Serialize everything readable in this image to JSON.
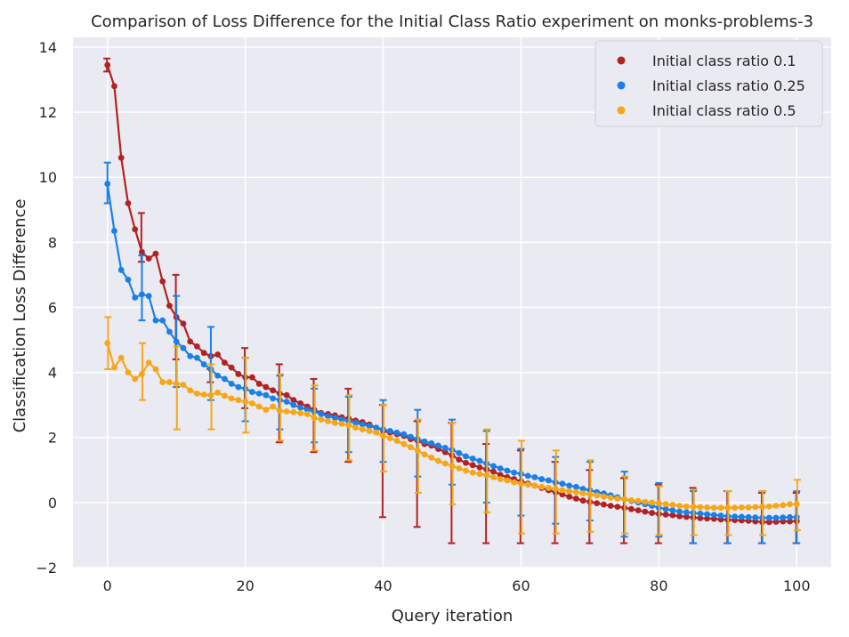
{
  "chart_data": {
    "type": "line",
    "title": "Comparison of Loss Difference for the Initial Class Ratio experiment on monks-problems-3",
    "xlabel": "Query iteration",
    "ylabel": "Classification Loss Difference",
    "xlim": [
      -5,
      105
    ],
    "ylim": [
      -2,
      14.3
    ],
    "xticks": [
      0,
      20,
      40,
      60,
      80,
      100
    ],
    "xtick_labels": [
      "0",
      "20",
      "40",
      "60",
      "80",
      "100"
    ],
    "yticks": [
      -2,
      0,
      2,
      4,
      6,
      8,
      10,
      12,
      14
    ],
    "ytick_labels": [
      "−2",
      "0",
      "2",
      "4",
      "6",
      "8",
      "10",
      "12",
      "14"
    ],
    "grid": true,
    "background": "#eaeaf2",
    "legend_position": "top-right",
    "errorbar_every": 5,
    "series": [
      {
        "name": "Initial class ratio 0.1",
        "color": "#b22222",
        "values": [
          13.45,
          12.8,
          10.6,
          9.2,
          8.4,
          7.7,
          7.5,
          7.65,
          6.8,
          6.05,
          5.7,
          5.5,
          4.95,
          4.8,
          4.6,
          4.5,
          4.55,
          4.3,
          4.15,
          3.95,
          3.85,
          3.85,
          3.65,
          3.55,
          3.45,
          3.35,
          3.3,
          3.15,
          3.05,
          2.95,
          2.85,
          2.75,
          2.72,
          2.68,
          2.62,
          2.58,
          2.52,
          2.47,
          2.4,
          2.3,
          2.2,
          2.15,
          2.1,
          2.05,
          1.95,
          1.9,
          1.8,
          1.75,
          1.65,
          1.55,
          1.45,
          1.32,
          1.22,
          1.15,
          1.08,
          1.02,
          0.95,
          0.85,
          0.78,
          0.72,
          0.65,
          0.58,
          0.52,
          0.45,
          0.38,
          0.32,
          0.25,
          0.18,
          0.12,
          0.06,
          0.02,
          -0.02,
          -0.06,
          -0.1,
          -0.13,
          -0.16,
          -0.2,
          -0.24,
          -0.28,
          -0.32,
          -0.35,
          -0.37,
          -0.39,
          -0.42,
          -0.44,
          -0.46,
          -0.48,
          -0.49,
          -0.5,
          -0.52,
          -0.53,
          -0.54,
          -0.55,
          -0.56,
          -0.58,
          -0.6,
          -0.6,
          -0.59,
          -0.58,
          -0.58,
          -0.57
        ],
        "err_low": [
          13.25,
          7.4,
          4.4,
          3.7,
          2.9,
          1.85,
          1.55,
          1.25,
          -0.45,
          -0.75,
          -1.25,
          -1.25,
          -1.25,
          -1.25,
          -1.25,
          -1.25,
          -1.25,
          -1.25,
          -1.25,
          -1.25,
          -1.25
        ],
        "err_high": [
          13.65,
          8.9,
          7.0,
          4.1,
          4.75,
          4.25,
          3.8,
          3.5,
          3.0,
          2.5,
          2.45,
          1.8,
          1.6,
          1.25,
          1.0,
          0.75,
          0.55,
          0.45,
          0.35,
          0.3,
          0.3
        ]
      },
      {
        "name": "Initial class ratio 0.25",
        "color": "#1a80e8",
        "values": [
          9.8,
          8.35,
          7.15,
          6.85,
          6.3,
          6.4,
          6.35,
          5.6,
          5.6,
          5.25,
          4.95,
          4.75,
          4.5,
          4.45,
          4.25,
          4.1,
          3.9,
          3.8,
          3.65,
          3.55,
          3.5,
          3.4,
          3.35,
          3.3,
          3.2,
          3.15,
          3.1,
          3.0,
          2.92,
          2.85,
          2.8,
          2.72,
          2.65,
          2.6,
          2.55,
          2.5,
          2.45,
          2.4,
          2.35,
          2.3,
          2.25,
          2.2,
          2.15,
          2.1,
          2.02,
          1.95,
          1.88,
          1.82,
          1.75,
          1.68,
          1.62,
          1.52,
          1.42,
          1.35,
          1.28,
          1.2,
          1.12,
          1.05,
          0.98,
          0.92,
          0.88,
          0.82,
          0.78,
          0.72,
          0.68,
          0.62,
          0.58,
          0.52,
          0.48,
          0.42,
          0.38,
          0.32,
          0.28,
          0.22,
          0.16,
          0.1,
          0.05,
          0.0,
          -0.05,
          -0.1,
          -0.16,
          -0.2,
          -0.24,
          -0.28,
          -0.3,
          -0.32,
          -0.34,
          -0.36,
          -0.38,
          -0.4,
          -0.42,
          -0.43,
          -0.44,
          -0.45,
          -0.46,
          -0.47,
          -0.47,
          -0.47,
          -0.46,
          -0.45,
          -0.45
        ],
        "err_low": [
          9.2,
          5.6,
          3.55,
          3.15,
          2.5,
          2.25,
          1.85,
          1.55,
          1.25,
          0.8,
          0.55,
          0.0,
          -0.4,
          -0.65,
          -0.55,
          -1.05,
          -1.05,
          -1.25,
          -1.25,
          -1.25,
          -1.25
        ],
        "err_high": [
          10.45,
          7.6,
          6.35,
          5.4,
          4.45,
          3.9,
          3.5,
          3.25,
          3.15,
          2.85,
          2.55,
          2.2,
          1.65,
          1.4,
          1.25,
          0.95,
          0.6,
          0.35,
          0.35,
          0.35,
          0.35
        ]
      },
      {
        "name": "Initial class ratio 0.5",
        "color": "#f5a718",
        "values": [
          4.9,
          4.15,
          4.45,
          4.0,
          3.8,
          3.95,
          4.3,
          4.1,
          3.7,
          3.7,
          3.65,
          3.62,
          3.45,
          3.35,
          3.32,
          3.3,
          3.38,
          3.28,
          3.2,
          3.15,
          3.1,
          3.05,
          2.95,
          2.85,
          2.95,
          2.82,
          2.8,
          2.78,
          2.75,
          2.72,
          2.6,
          2.55,
          2.5,
          2.45,
          2.42,
          2.38,
          2.3,
          2.25,
          2.2,
          2.15,
          2.05,
          1.98,
          1.9,
          1.8,
          1.7,
          1.6,
          1.48,
          1.38,
          1.28,
          1.2,
          1.12,
          1.05,
          0.98,
          0.92,
          0.88,
          0.84,
          0.78,
          0.72,
          0.68,
          0.62,
          0.58,
          0.55,
          0.52,
          0.48,
          0.45,
          0.42,
          0.38,
          0.35,
          0.32,
          0.28,
          0.25,
          0.22,
          0.18,
          0.15,
          0.12,
          0.1,
          0.07,
          0.05,
          0.02,
          0.0,
          -0.02,
          -0.05,
          -0.07,
          -0.1,
          -0.12,
          -0.13,
          -0.14,
          -0.15,
          -0.16,
          -0.16,
          -0.16,
          -0.16,
          -0.15,
          -0.15,
          -0.14,
          -0.13,
          -0.12,
          -0.1,
          -0.08,
          -0.05,
          -0.05
        ],
        "err_low": [
          4.1,
          3.15,
          2.25,
          2.25,
          2.15,
          1.9,
          1.6,
          1.3,
          0.95,
          0.3,
          -0.05,
          -0.3,
          -0.95,
          -0.95,
          -0.9,
          -0.95,
          -1.0,
          -1.0,
          -1.0,
          -1.0,
          -0.85
        ],
        "err_high": [
          5.7,
          4.9,
          4.8,
          4.25,
          4.45,
          3.95,
          3.6,
          3.3,
          3.0,
          2.55,
          2.45,
          2.25,
          1.9,
          1.6,
          1.3,
          0.8,
          0.5,
          0.4,
          0.35,
          0.35,
          0.7
        ]
      }
    ]
  }
}
